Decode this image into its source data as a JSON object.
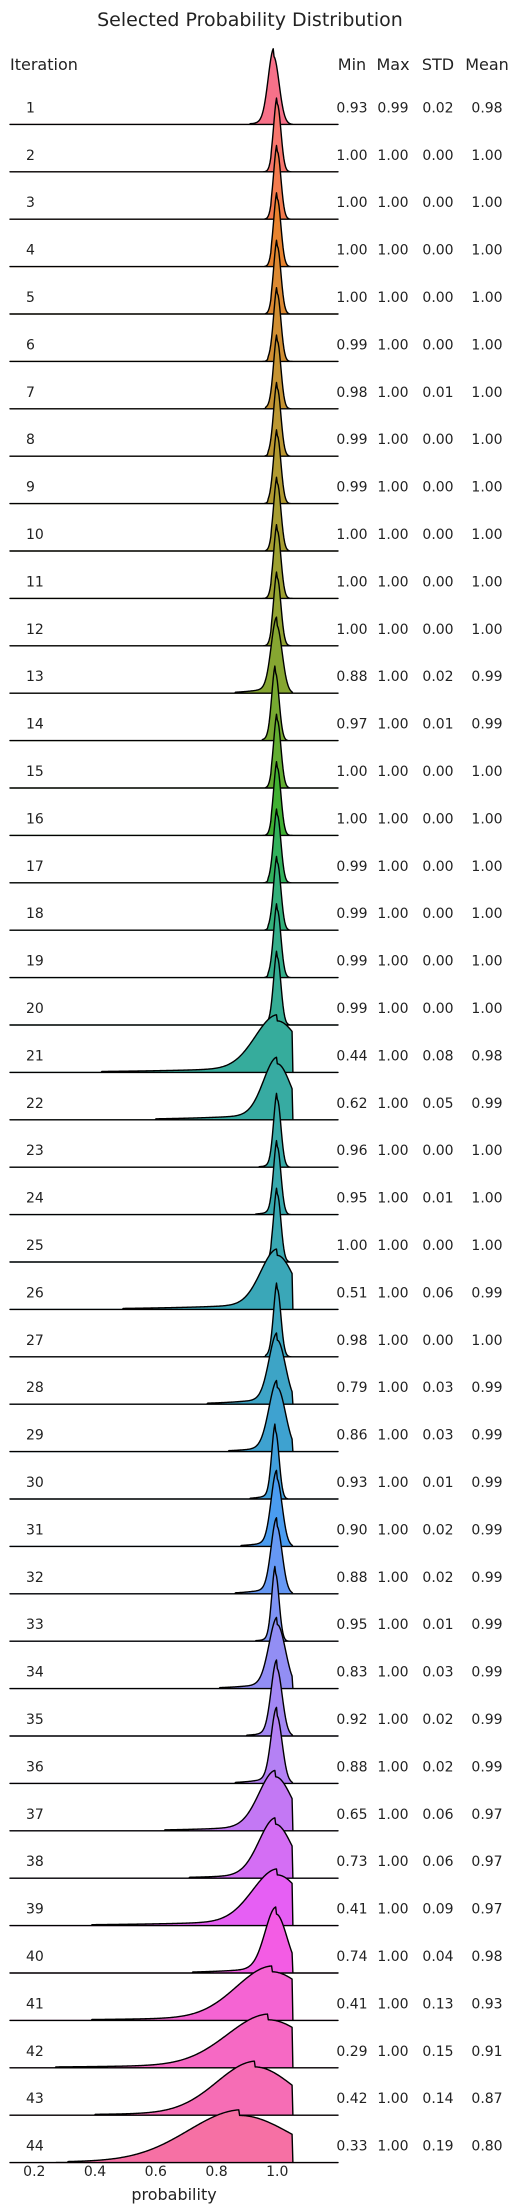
{
  "chart_data": {
    "type": "ridgeline",
    "title": "Selected Probability Distribution",
    "xlabel": "probability",
    "x_ticks": [
      0.2,
      0.4,
      0.6,
      0.8,
      1.0
    ],
    "x_tick_labels": [
      "0.2",
      "0.4",
      "0.6",
      "0.8",
      "1.0"
    ],
    "xlim": [
      0.12,
      1.2
    ],
    "row_header": "Iteration",
    "stat_headers": [
      "Min",
      "Max",
      "STD",
      "Mean"
    ],
    "rows": [
      {
        "label": "1",
        "min": "0.93",
        "max": "0.99",
        "std": "0.02",
        "mean": "0.98",
        "color": "#f77189"
      },
      {
        "label": "2",
        "min": "1.00",
        "max": "1.00",
        "std": "0.00",
        "mean": "1.00",
        "color": "#f7766d"
      },
      {
        "label": "3",
        "min": "1.00",
        "max": "1.00",
        "std": "0.00",
        "mean": "1.00",
        "color": "#f37b4e"
      },
      {
        "label": "4",
        "min": "1.00",
        "max": "1.00",
        "std": "0.00",
        "mean": "1.00",
        "color": "#e8832e"
      },
      {
        "label": "5",
        "min": "1.00",
        "max": "1.00",
        "std": "0.00",
        "mean": "1.00",
        "color": "#dc8932"
      },
      {
        "label": "6",
        "min": "0.99",
        "max": "1.00",
        "std": "0.00",
        "mean": "1.00",
        "color": "#d08e32"
      },
      {
        "label": "7",
        "min": "0.98",
        "max": "1.00",
        "std": "0.01",
        "mean": "1.00",
        "color": "#c59332"
      },
      {
        "label": "8",
        "min": "0.99",
        "max": "1.00",
        "std": "0.00",
        "mean": "1.00",
        "color": "#bb9732"
      },
      {
        "label": "9",
        "min": "0.99",
        "max": "1.00",
        "std": "0.00",
        "mean": "1.00",
        "color": "#b19a31"
      },
      {
        "label": "10",
        "min": "1.00",
        "max": "1.00",
        "std": "0.00",
        "mean": "1.00",
        "color": "#a79d31"
      },
      {
        "label": "11",
        "min": "1.00",
        "max": "1.00",
        "std": "0.00",
        "mean": "1.00",
        "color": "#9da031"
      },
      {
        "label": "12",
        "min": "1.00",
        "max": "1.00",
        "std": "0.00",
        "mean": "1.00",
        "color": "#92a331"
      },
      {
        "label": "13",
        "min": "0.88",
        "max": "1.00",
        "std": "0.02",
        "mean": "0.99",
        "color": "#86a631"
      },
      {
        "label": "14",
        "min": "0.97",
        "max": "1.00",
        "std": "0.01",
        "mean": "0.99",
        "color": "#77a931"
      },
      {
        "label": "15",
        "min": "1.00",
        "max": "1.00",
        "std": "0.00",
        "mean": "1.00",
        "color": "#62ad31"
      },
      {
        "label": "16",
        "min": "1.00",
        "max": "1.00",
        "std": "0.00",
        "mean": "1.00",
        "color": "#40b032"
      },
      {
        "label": "17",
        "min": "0.99",
        "max": "1.00",
        "std": "0.00",
        "mean": "1.00",
        "color": "#32b15c"
      },
      {
        "label": "18",
        "min": "0.99",
        "max": "1.00",
        "std": "0.00",
        "mean": "1.00",
        "color": "#33b07a"
      },
      {
        "label": "19",
        "min": "0.99",
        "max": "1.00",
        "std": "0.00",
        "mean": "1.00",
        "color": "#34ae8a"
      },
      {
        "label": "20",
        "min": "0.99",
        "max": "1.00",
        "std": "0.00",
        "mean": "1.00",
        "color": "#35ad94"
      },
      {
        "label": "21",
        "min": "0.44",
        "max": "1.00",
        "std": "0.08",
        "mean": "0.98",
        "color": "#36ac9c"
      },
      {
        "label": "22",
        "min": "0.62",
        "max": "1.00",
        "std": "0.05",
        "mean": "0.99",
        "color": "#37aba2"
      },
      {
        "label": "23",
        "min": "0.96",
        "max": "1.00",
        "std": "0.00",
        "mean": "1.00",
        "color": "#38aaa7"
      },
      {
        "label": "24",
        "min": "0.95",
        "max": "1.00",
        "std": "0.01",
        "mean": "1.00",
        "color": "#38a9ad"
      },
      {
        "label": "25",
        "min": "1.00",
        "max": "1.00",
        "std": "0.00",
        "mean": "1.00",
        "color": "#39a8b2"
      },
      {
        "label": "26",
        "min": "0.51",
        "max": "1.00",
        "std": "0.06",
        "mean": "0.99",
        "color": "#3aa7b8"
      },
      {
        "label": "27",
        "min": "0.98",
        "max": "1.00",
        "std": "0.00",
        "mean": "1.00",
        "color": "#3ba6bf"
      },
      {
        "label": "28",
        "min": "0.79",
        "max": "1.00",
        "std": "0.03",
        "mean": "0.99",
        "color": "#3da4c6"
      },
      {
        "label": "29",
        "min": "0.86",
        "max": "1.00",
        "std": "0.03",
        "mean": "0.99",
        "color": "#3ea2d0"
      },
      {
        "label": "30",
        "min": "0.93",
        "max": "1.00",
        "std": "0.01",
        "mean": "0.99",
        "color": "#41a0dd"
      },
      {
        "label": "31",
        "min": "0.90",
        "max": "1.00",
        "std": "0.02",
        "mean": "0.99",
        "color": "#4a9cf0"
      },
      {
        "label": "32",
        "min": "0.88",
        "max": "1.00",
        "std": "0.02",
        "mean": "0.99",
        "color": "#6698f4"
      },
      {
        "label": "33",
        "min": "0.95",
        "max": "1.00",
        "std": "0.01",
        "mean": "0.99",
        "color": "#7e93f4"
      },
      {
        "label": "34",
        "min": "0.83",
        "max": "1.00",
        "std": "0.03",
        "mean": "0.99",
        "color": "#928ef4"
      },
      {
        "label": "35",
        "min": "0.92",
        "max": "1.00",
        "std": "0.02",
        "mean": "0.99",
        "color": "#a388f4"
      },
      {
        "label": "36",
        "min": "0.88",
        "max": "1.00",
        "std": "0.02",
        "mean": "0.99",
        "color": "#b481f4"
      },
      {
        "label": "37",
        "min": "0.65",
        "max": "1.00",
        "std": "0.06",
        "mean": "0.97",
        "color": "#c378f4"
      },
      {
        "label": "38",
        "min": "0.73",
        "max": "1.00",
        "std": "0.06",
        "mean": "0.97",
        "color": "#d46ef4"
      },
      {
        "label": "39",
        "min": "0.41",
        "max": "1.00",
        "std": "0.09",
        "mean": "0.97",
        "color": "#e65ff4"
      },
      {
        "label": "40",
        "min": "0.74",
        "max": "1.00",
        "std": "0.04",
        "mean": "0.98",
        "color": "#f35ce4"
      },
      {
        "label": "41",
        "min": "0.41",
        "max": "1.00",
        "std": "0.13",
        "mean": "0.93",
        "color": "#f564d3"
      },
      {
        "label": "42",
        "min": "0.29",
        "max": "1.00",
        "std": "0.15",
        "mean": "0.91",
        "color": "#f669c4"
      },
      {
        "label": "43",
        "min": "0.42",
        "max": "1.00",
        "std": "0.14",
        "mean": "0.87",
        "color": "#f66db5"
      },
      {
        "label": "44",
        "min": "0.33",
        "max": "1.00",
        "std": "0.19",
        "mean": "0.80",
        "color": "#f670a4"
      }
    ]
  }
}
